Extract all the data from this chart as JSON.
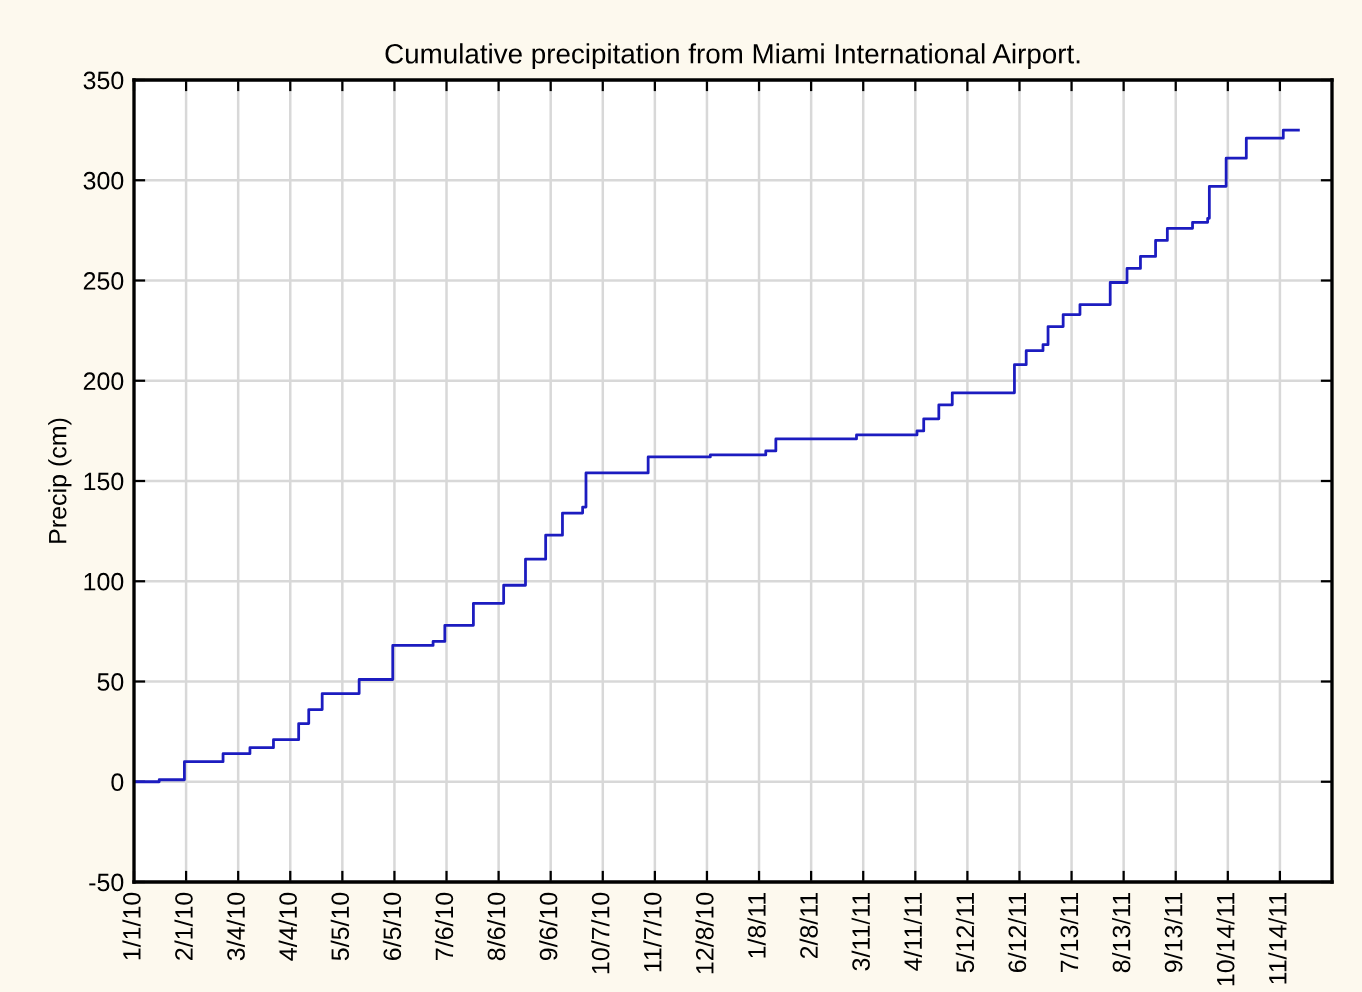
{
  "chart_data": {
    "type": "step",
    "title": "Cumulative precipitation from Miami International Airport.",
    "ylabel": "Precip (cm)",
    "x": [
      "2010-01-01",
      "2010-01-16",
      "2010-01-31",
      "2010-02-23",
      "2010-03-11",
      "2010-03-25",
      "2010-04-09",
      "2010-04-15",
      "2010-04-23",
      "2010-05-15",
      "2010-06-04",
      "2010-06-28",
      "2010-07-05",
      "2010-07-22",
      "2010-08-09",
      "2010-08-22",
      "2010-09-03",
      "2010-09-13",
      "2010-09-25",
      "2010-09-27",
      "2010-11-03",
      "2010-12-10",
      "2011-01-12",
      "2011-01-18",
      "2011-03-07",
      "2011-04-12",
      "2011-04-16",
      "2011-04-25",
      "2011-05-03",
      "2011-06-09",
      "2011-06-16",
      "2011-06-26",
      "2011-06-29",
      "2011-07-08",
      "2011-07-18",
      "2011-08-05",
      "2011-08-15",
      "2011-08-23",
      "2011-09-01",
      "2011-09-08",
      "2011-09-23",
      "2011-10-02",
      "2011-10-03",
      "2011-10-13",
      "2011-10-25",
      "2011-11-16",
      "2011-11-25"
    ],
    "series": [
      {
        "color": "#1c1cc0",
        "values": [
          0,
          1,
          10,
          14,
          17,
          21,
          29,
          36,
          44,
          51,
          68,
          70,
          78,
          89,
          98,
          111,
          123,
          134,
          137,
          154,
          162,
          163,
          165,
          171,
          173,
          175,
          181,
          188,
          194,
          208,
          215,
          218,
          227,
          233,
          238,
          249,
          256,
          262,
          270,
          276,
          279,
          281,
          297,
          311,
          321,
          325,
          325
        ]
      }
    ],
    "xlim": [
      "2010-01-01",
      "2011-12-15"
    ],
    "xticks": [
      {
        "value": "2010-01-01",
        "label": "1/1/10"
      },
      {
        "value": "2010-02-01",
        "label": "2/1/10"
      },
      {
        "value": "2010-03-04",
        "label": "3/4/10"
      },
      {
        "value": "2010-04-04",
        "label": "4/4/10"
      },
      {
        "value": "2010-05-05",
        "label": "5/5/10"
      },
      {
        "value": "2010-06-05",
        "label": "6/5/10"
      },
      {
        "value": "2010-07-06",
        "label": "7/6/10"
      },
      {
        "value": "2010-08-06",
        "label": "8/6/10"
      },
      {
        "value": "2010-09-06",
        "label": "9/6/10"
      },
      {
        "value": "2010-10-07",
        "label": "10/7/10"
      },
      {
        "value": "2010-11-07",
        "label": "11/7/10"
      },
      {
        "value": "2010-12-08",
        "label": "12/8/10"
      },
      {
        "value": "2011-01-08",
        "label": "1/8/11"
      },
      {
        "value": "2011-02-08",
        "label": "2/8/11"
      },
      {
        "value": "2011-03-11",
        "label": "3/11/11"
      },
      {
        "value": "2011-04-11",
        "label": "4/11/11"
      },
      {
        "value": "2011-05-12",
        "label": "5/12/11"
      },
      {
        "value": "2011-06-12",
        "label": "6/12/11"
      },
      {
        "value": "2011-07-13",
        "label": "7/13/11"
      },
      {
        "value": "2011-08-13",
        "label": "8/13/11"
      },
      {
        "value": "2011-09-13",
        "label": "9/13/11"
      },
      {
        "value": "2011-10-14",
        "label": "10/14/11"
      },
      {
        "value": "2011-11-14",
        "label": "11/14/11"
      }
    ],
    "ylim": [
      -50,
      350
    ],
    "yticks": [
      -50,
      0,
      50,
      100,
      150,
      200,
      250,
      300,
      350
    ],
    "grid": true,
    "line_style": "solid",
    "marker": "none"
  }
}
